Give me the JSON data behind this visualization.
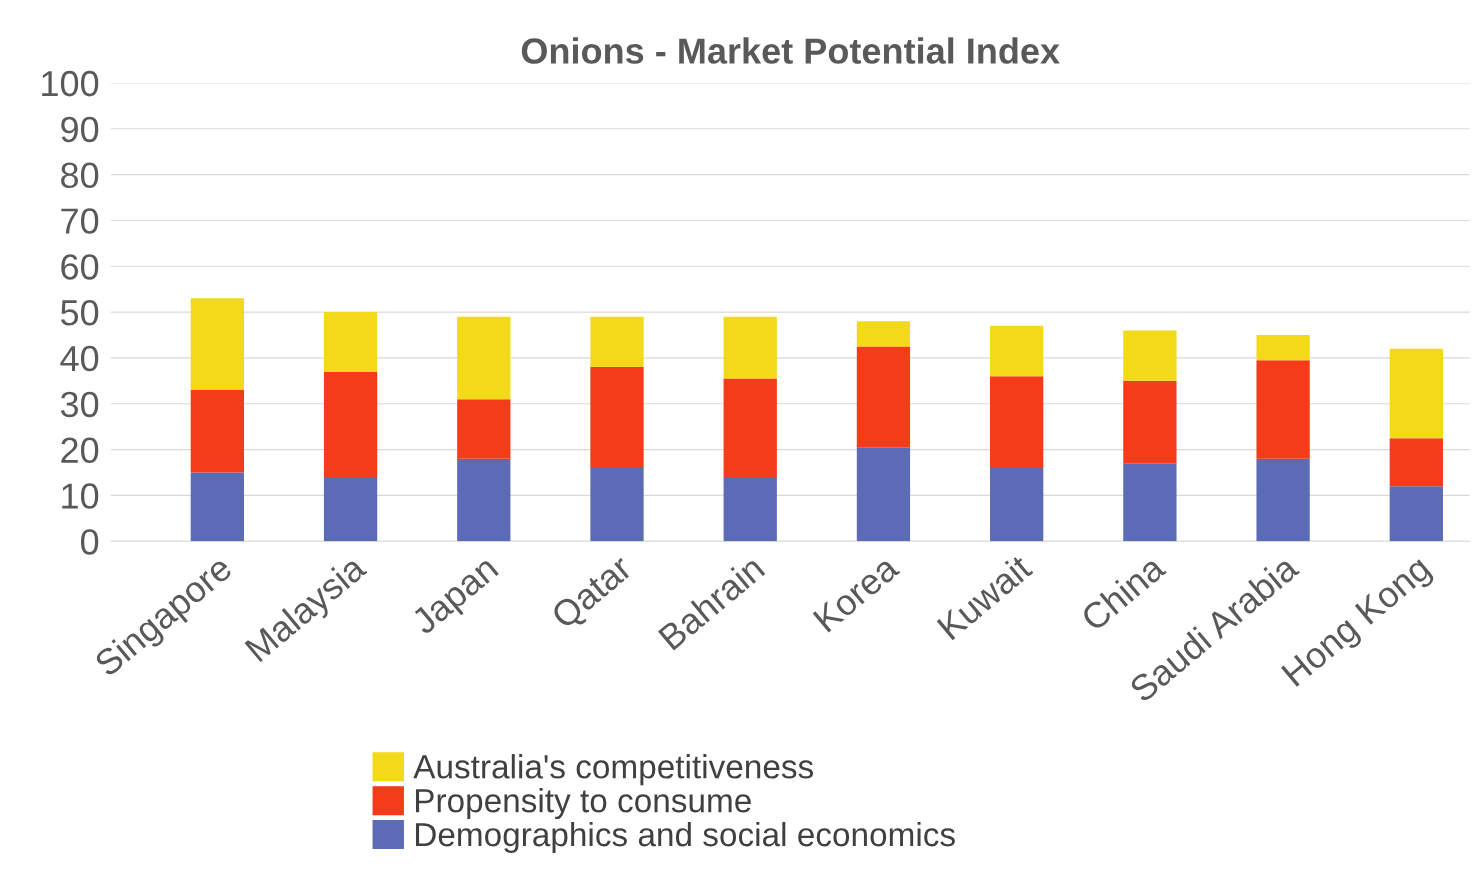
{
  "chart_data": {
    "type": "bar",
    "title": "Onions - Market Potential Index",
    "stacked": true,
    "categories": [
      "Singapore",
      "Malaysia",
      "Japan",
      "Qatar",
      "Bahrain",
      "Korea",
      "Kuwait",
      "China",
      "Saudi Arabia",
      "Hong Kong"
    ],
    "series": [
      {
        "name": "Demographics and social economics",
        "color": "#5b6bb5",
        "values": [
          15,
          14,
          18,
          16,
          14,
          20.5,
          16,
          17,
          18,
          12
        ]
      },
      {
        "name": "Propensity to consume",
        "color": "#f23c1a",
        "values": [
          18,
          23,
          13,
          22,
          21.5,
          22,
          20,
          18,
          21.5,
          10.5
        ]
      },
      {
        "name": "Australia's competitiveness",
        "color": "#f2d91a",
        "values": [
          20,
          13,
          18,
          11,
          13.5,
          5.5,
          11,
          11,
          5.5,
          19.5
        ]
      }
    ],
    "ylim": [
      0,
      100
    ],
    "yticks": [
      0,
      10,
      20,
      30,
      40,
      50,
      60,
      70,
      80,
      90,
      100
    ],
    "grid": "y",
    "legend": "bottom"
  }
}
